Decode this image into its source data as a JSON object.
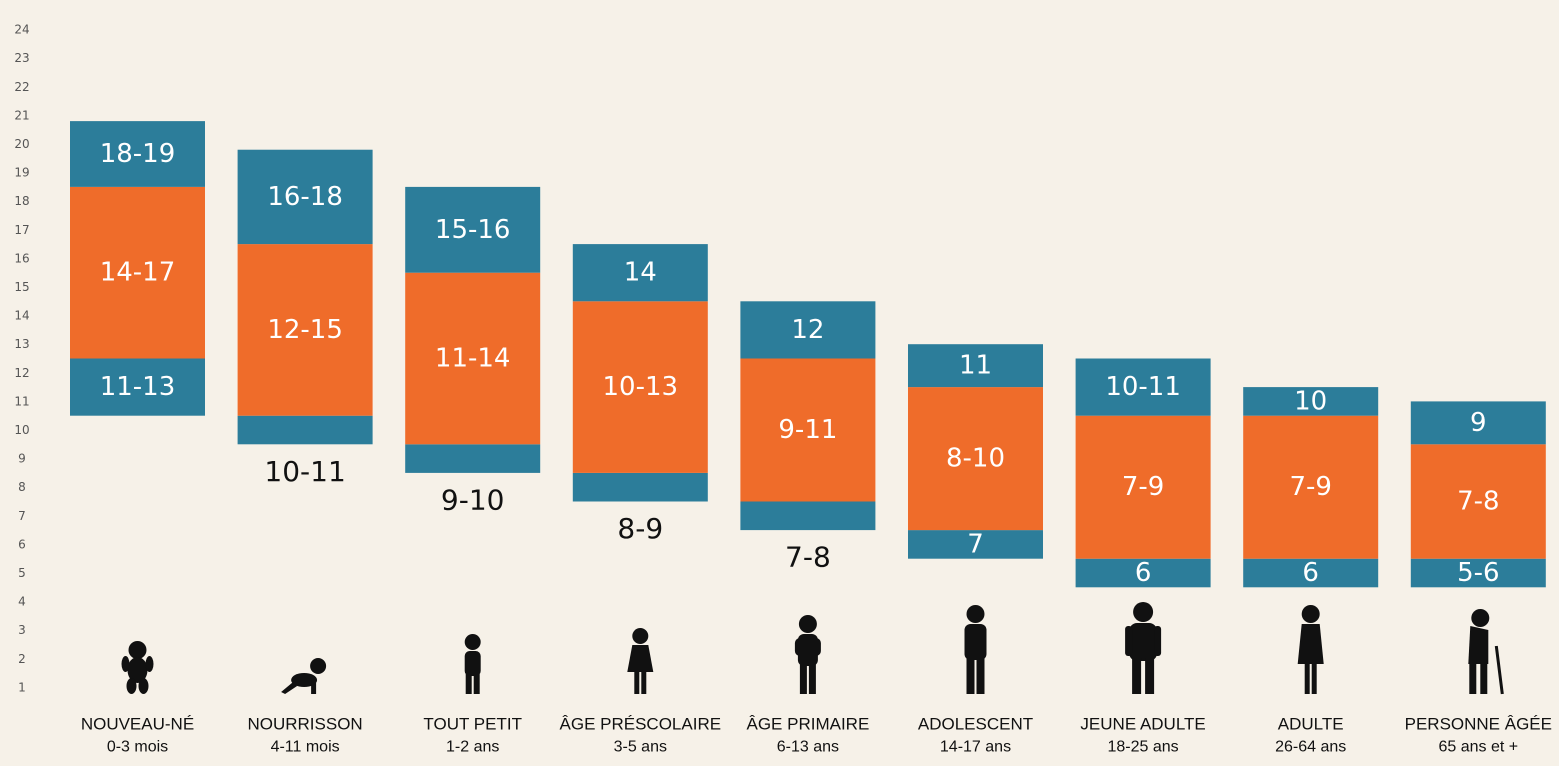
{
  "chart_data": {
    "type": "bar",
    "subtype": "stacked-range",
    "y_ticks": [
      1,
      2,
      3,
      4,
      5,
      6,
      7,
      8,
      9,
      10,
      11,
      12,
      13,
      14,
      15,
      16,
      17,
      18,
      19,
      20,
      21,
      22,
      23,
      24
    ],
    "ylim": [
      0,
      24
    ],
    "grid": false,
    "colors": {
      "recommended": "#ef6c2a",
      "acceptable": "#2c7d9a",
      "background": "#f6f1e8"
    },
    "categories": [
      {
        "name": "NOUVEAU-NÉ",
        "age": "0-3 mois",
        "icon": "newborn-icon",
        "lower": [
          10.5,
          12.5
        ],
        "recommended": [
          12.5,
          18.5
        ],
        "upper": [
          18.5,
          20.8
        ],
        "lower_label": "11-13",
        "recommended_label": "14-17",
        "upper_label": "18-19",
        "external_label": ""
      },
      {
        "name": "NOURRISSON",
        "age": "4-11 mois",
        "icon": "crawling-baby-icon",
        "lower": [
          9.5,
          10.5
        ],
        "recommended": [
          10.5,
          16.5
        ],
        "upper": [
          16.5,
          19.8
        ],
        "lower_label": "",
        "recommended_label": "12-15",
        "upper_label": "16-18",
        "external_label": "10-11"
      },
      {
        "name": "TOUT PETIT",
        "age": "1-2 ans",
        "icon": "toddler-icon",
        "lower": [
          8.5,
          9.5
        ],
        "recommended": [
          9.5,
          15.5
        ],
        "upper": [
          15.5,
          18.5
        ],
        "lower_label": "",
        "recommended_label": "11-14",
        "upper_label": "15-16",
        "external_label": "9-10"
      },
      {
        "name": "ÂGE PRÉSCOLAIRE",
        "age": "3-5 ans",
        "icon": "preschool-child-icon",
        "lower": [
          7.5,
          8.5
        ],
        "recommended": [
          8.5,
          14.5
        ],
        "upper": [
          14.5,
          16.5
        ],
        "lower_label": "",
        "recommended_label": "10-13",
        "upper_label": "14",
        "external_label": "8-9"
      },
      {
        "name": "ÂGE PRIMAIRE",
        "age": "6-13 ans",
        "icon": "school-child-icon",
        "lower": [
          6.5,
          7.5
        ],
        "recommended": [
          7.5,
          12.5
        ],
        "upper": [
          12.5,
          14.5
        ],
        "lower_label": "",
        "recommended_label": "9-11",
        "upper_label": "12",
        "external_label": "7-8"
      },
      {
        "name": "ADOLESCENT",
        "age": "14-17 ans",
        "icon": "teenager-icon",
        "lower": [
          5.5,
          6.5
        ],
        "recommended": [
          6.5,
          11.5
        ],
        "upper": [
          11.5,
          13.0
        ],
        "lower_label": "7",
        "recommended_label": "8-10",
        "upper_label": "11",
        "external_label": ""
      },
      {
        "name": "JEUNE ADULTE",
        "age": "18-25 ans",
        "icon": "young-adult-icon",
        "lower": [
          4.5,
          5.5
        ],
        "recommended": [
          5.5,
          10.5
        ],
        "upper": [
          10.5,
          12.5
        ],
        "lower_label": "6",
        "recommended_label": "7-9",
        "upper_label": "10-11",
        "external_label": ""
      },
      {
        "name": "ADULTE",
        "age": "26-64 ans",
        "icon": "adult-icon",
        "lower": [
          4.5,
          5.5
        ],
        "recommended": [
          5.5,
          10.5
        ],
        "upper": [
          10.5,
          11.5
        ],
        "lower_label": "6",
        "recommended_label": "7-9",
        "upper_label": "10",
        "external_label": ""
      },
      {
        "name": "PERSONNE ÂGÉE",
        "age": "65 ans et +",
        "icon": "elderly-person-with-cane-icon",
        "lower": [
          4.5,
          5.5
        ],
        "recommended": [
          5.5,
          9.5
        ],
        "upper": [
          9.5,
          11.0
        ],
        "lower_label": "5-6",
        "recommended_label": "7-8",
        "upper_label": "9",
        "external_label": ""
      }
    ]
  }
}
